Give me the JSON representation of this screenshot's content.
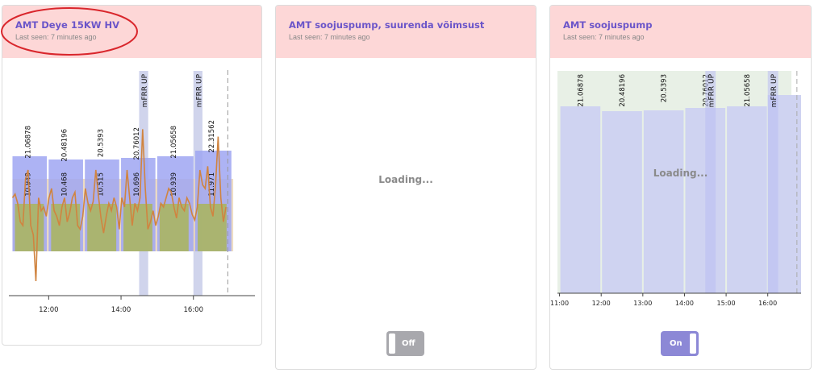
{
  "cards": [
    {
      "title": "AMT Deye 15KW HV",
      "subtitle": "Last seen: 7 minutes ago"
    },
    {
      "title": "AMT soojuspump, suurenda võimsust",
      "subtitle": "Last seen: 7 minutes ago",
      "loading_text": "Loading...",
      "toggle_label": "Off"
    },
    {
      "title": "AMT soojuspump",
      "subtitle": "Last seen: 7 minutes ago",
      "loading_text": "Loading...",
      "toggle_label": "On"
    }
  ],
  "colors": {
    "header_bg": "#fdd7d7",
    "title": "#6b55c9",
    "price_bar": "#9fa6f2",
    "mfrr_band": "#c8cde9",
    "power_line": "#d08440",
    "soc_area": "#a9b55a",
    "annotation_ellipse": "#d9262c",
    "toggle_on": "#8c88d6",
    "toggle_off": "#a8a8ad"
  },
  "chart_data": [
    {
      "type": "bar",
      "x_ticks": [
        "12:00",
        "14:00",
        "16:00"
      ],
      "x_range_hours": [
        10.9,
        17.7
      ],
      "price_high_labels": [
        "21.06878",
        "20.48196",
        "20.5393",
        "20.76012",
        "21.05658",
        "22.31562"
      ],
      "price_low_labels": [
        "10.949",
        "10.468",
        "10.515",
        "10.696",
        "10.939",
        "11.971"
      ],
      "price_high_start_hours": [
        11,
        12,
        13,
        14,
        15,
        16.05
      ],
      "band_labels": [
        "mFRR UP",
        "mFRR UP"
      ],
      "band_start_hours": [
        14.5,
        16.0
      ],
      "band_end_hours": [
        14.75,
        16.25
      ],
      "power_series": [
        0.55,
        0.57,
        0.52,
        0.42,
        0.4,
        0.65,
        0.7,
        0.4,
        0.35,
        0.1,
        0.55,
        0.48,
        0.5,
        0.45,
        0.55,
        0.6,
        0.48,
        0.45,
        0.4,
        0.5,
        0.55,
        0.42,
        0.47,
        0.55,
        0.58,
        0.4,
        0.38,
        0.45,
        0.6,
        0.52,
        0.48,
        0.53,
        0.7,
        0.56,
        0.44,
        0.36,
        0.45,
        0.52,
        0.48,
        0.55,
        0.5,
        0.38,
        0.55,
        0.5,
        0.7,
        0.55,
        0.4,
        0.52,
        0.48,
        0.55,
        0.92,
        0.6,
        0.38,
        0.42,
        0.48,
        0.4,
        0.45,
        0.52,
        0.5,
        0.55,
        0.6,
        0.58,
        0.5,
        0.44,
        0.55,
        0.5,
        0.48,
        0.55,
        0.52,
        0.46,
        0.43,
        0.5,
        0.7,
        0.62,
        0.6,
        0.72,
        0.5,
        0.45,
        0.62,
        0.88,
        0.55,
        0.42,
        0.5
      ]
    },
    {
      "type": "bar",
      "x_ticks": [
        "11:00",
        "12:00",
        "13:00",
        "14:00",
        "15:00",
        "16:00"
      ],
      "x_range_hours": [
        10.95,
        16.8
      ],
      "price_labels": [
        "21.06878",
        "20.48196",
        "20.5393",
        "20.76012",
        "21.05658"
      ],
      "price_start_hours": [
        11,
        12,
        13,
        14,
        15
      ],
      "band_labels": [
        "mFRR UP",
        "mFRR UP"
      ],
      "band_start_hours": [
        14.5,
        16.0
      ],
      "band_end_hours": [
        14.75,
        16.25
      ]
    }
  ]
}
